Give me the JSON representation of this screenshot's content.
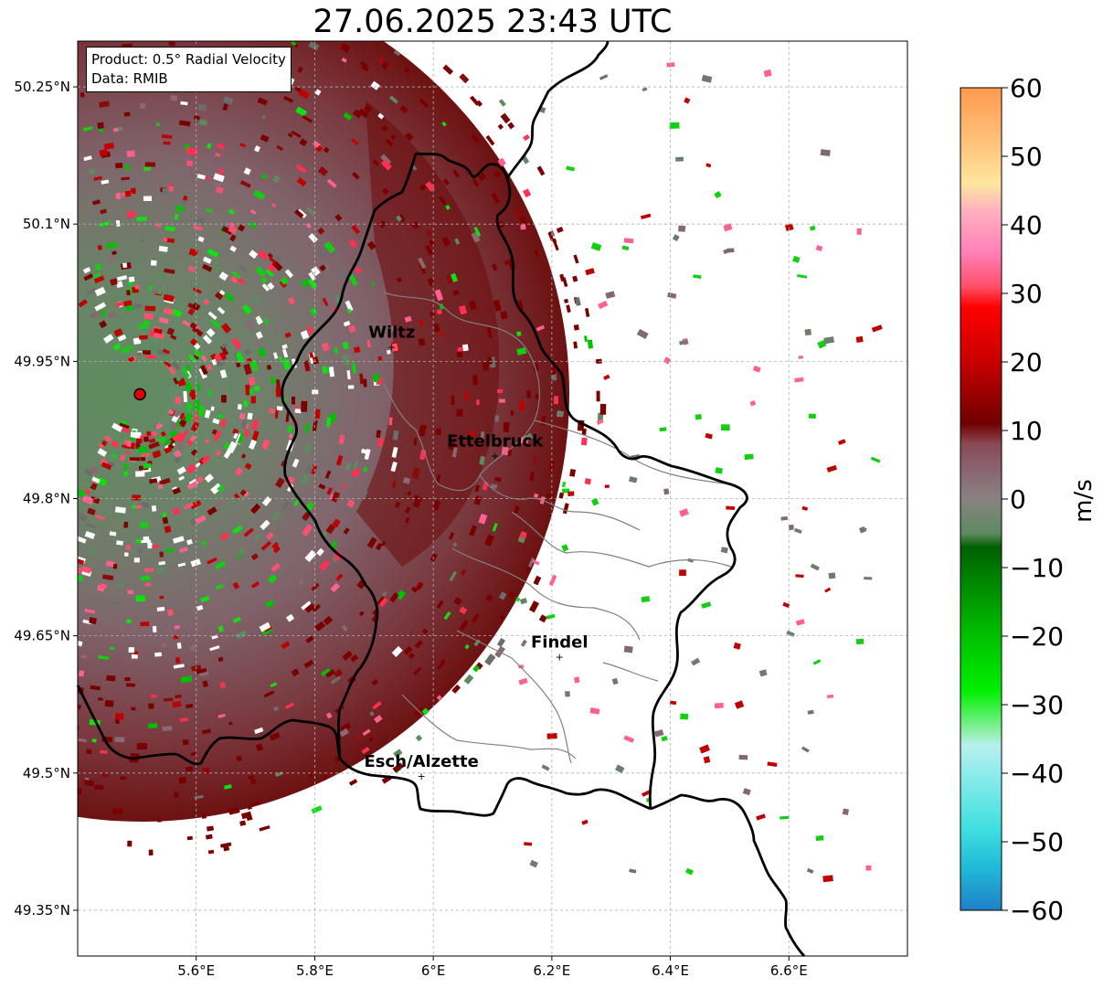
{
  "title": "27.06.2025 23:43 UTC",
  "info": {
    "product": "Product: 0.5° Radial Velocity",
    "source": "Data: RMIB"
  },
  "map": {
    "lon_range": [
      5.4,
      6.8
    ],
    "lat_range": [
      49.3,
      50.3
    ],
    "lat_ticks": [
      {
        "value": 50.25,
        "label": "50.25°N"
      },
      {
        "value": 50.1,
        "label": "50.1°N"
      },
      {
        "value": 49.95,
        "label": "49.95°N"
      },
      {
        "value": 49.8,
        "label": "49.8°N"
      },
      {
        "value": 49.65,
        "label": "49.65°N"
      },
      {
        "value": 49.5,
        "label": "49.5°N"
      },
      {
        "value": 49.35,
        "label": "49.35°N"
      }
    ],
    "lon_ticks": [
      {
        "value": 5.6,
        "label": "5.6°E"
      },
      {
        "value": 5.8,
        "label": "5.8°E"
      },
      {
        "value": 6.0,
        "label": "6°E"
      },
      {
        "value": 6.2,
        "label": "6.2°E"
      },
      {
        "value": 6.4,
        "label": "6.4°E"
      },
      {
        "value": 6.6,
        "label": "6.6°E"
      }
    ],
    "radar_site": {
      "lon": 5.505,
      "lat": 49.914,
      "color": "#e00000"
    },
    "cities": [
      {
        "name": "Wiltz",
        "lon": 5.93,
        "lat": 49.966
      },
      {
        "name": "Ettelbruck",
        "lon": 6.104,
        "lat": 49.847
      },
      {
        "name": "Findel",
        "lon": 6.213,
        "lat": 49.627
      },
      {
        "name": "Esch/Alzette",
        "lon": 5.98,
        "lat": 49.497
      }
    ]
  },
  "colorbar": {
    "min": -60,
    "max": 60,
    "unit": "m/s",
    "ticks": [
      {
        "value": 60,
        "label": "60"
      },
      {
        "value": 50,
        "label": "50"
      },
      {
        "value": 40,
        "label": "40"
      },
      {
        "value": 30,
        "label": "30"
      },
      {
        "value": 20,
        "label": "20"
      },
      {
        "value": 10,
        "label": "10"
      },
      {
        "value": 0,
        "label": "0"
      },
      {
        "value": -10,
        "label": "−10"
      },
      {
        "value": -20,
        "label": "−20"
      },
      {
        "value": -30,
        "label": "−30"
      },
      {
        "value": -40,
        "label": "−40"
      },
      {
        "value": -50,
        "label": "−50"
      },
      {
        "value": -60,
        "label": "−60"
      }
    ],
    "stops": [
      {
        "value": 60,
        "color": "#ff9a50"
      },
      {
        "value": 52,
        "color": "#ffc27a"
      },
      {
        "value": 46,
        "color": "#ffe6a0"
      },
      {
        "value": 42,
        "color": "#ffb0c0"
      },
      {
        "value": 36,
        "color": "#ff80b8"
      },
      {
        "value": 31,
        "color": "#ff4f68"
      },
      {
        "value": 28,
        "color": "#ff0000"
      },
      {
        "value": 20,
        "color": "#c80000"
      },
      {
        "value": 11,
        "color": "#700000"
      },
      {
        "value": 8,
        "color": "#8a4a56"
      },
      {
        "value": 4,
        "color": "#8a6672"
      },
      {
        "value": 0,
        "color": "#8a8282"
      },
      {
        "value": -5,
        "color": "#5e8a60"
      },
      {
        "value": -7,
        "color": "#006000"
      },
      {
        "value": -20,
        "color": "#00c000"
      },
      {
        "value": -28,
        "color": "#00f000"
      },
      {
        "value": -34,
        "color": "#90f0a8"
      },
      {
        "value": -36,
        "color": "#b8f0f0"
      },
      {
        "value": -48,
        "color": "#40e0e0"
      },
      {
        "value": -54,
        "color": "#20b8d8"
      },
      {
        "value": -60,
        "color": "#2080c8"
      }
    ]
  }
}
